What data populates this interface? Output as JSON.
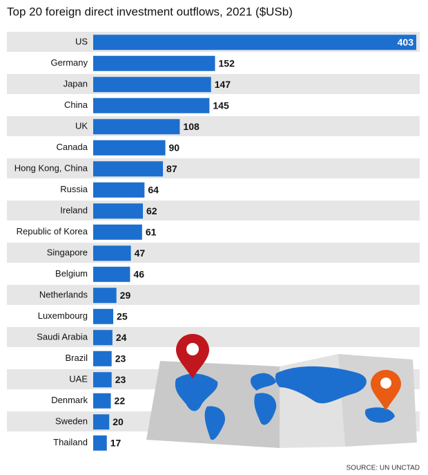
{
  "chart_data": {
    "type": "bar",
    "orientation": "horizontal",
    "title": "Top 20 foreign direct investment outflows, 2021 ($USb)",
    "source": "SOURCE: UN UNCTAD",
    "color": "#1c6fce",
    "categories": [
      "US",
      "Germany",
      "Japan",
      "China",
      "UK",
      "Canada",
      "Hong Kong, China",
      "Russia",
      "Ireland",
      "Republic of Korea",
      "Singapore",
      "Belgium",
      "Netherlands",
      "Luxembourg",
      "Saudi Arabia",
      "Brazil",
      "UAE",
      "Denmark",
      "Sweden",
      "Thailand"
    ],
    "values": [
      403,
      152,
      147,
      145,
      108,
      90,
      87,
      64,
      62,
      61,
      47,
      46,
      29,
      25,
      24,
      23,
      23,
      22,
      20,
      17
    ]
  }
}
